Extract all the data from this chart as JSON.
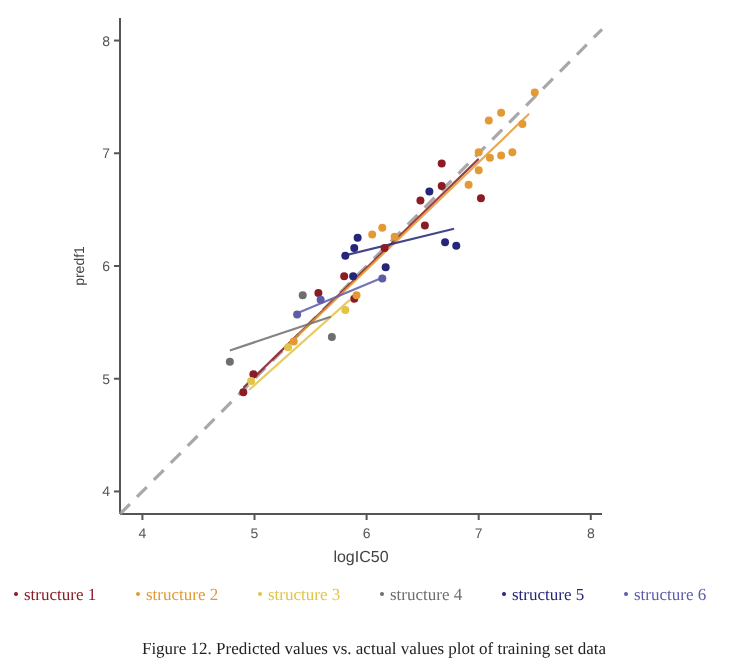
{
  "chart_data": {
    "type": "scatter",
    "xlabel": "logIC50",
    "ylabel": "predf1",
    "xlim": [
      3.8,
      8.1
    ],
    "ylim": [
      3.8,
      8.2
    ],
    "xticks": [
      4,
      5,
      6,
      7,
      8
    ],
    "yticks": [
      4,
      5,
      6,
      7,
      8
    ],
    "grid": false,
    "legend": "bottom",
    "marker": "circle",
    "annotations": [
      "Figure 12. Predicted values vs. actual values plot of training set data"
    ],
    "series": [
      {
        "name": "structure 1",
        "color": "#8b1c24",
        "x": [
          6.67,
          6.67,
          6.48,
          6.52,
          7.02,
          6.16,
          5.57,
          5.8,
          5.89,
          4.99,
          4.9
        ],
        "values": [
          6.91,
          6.71,
          6.58,
          6.36,
          6.6,
          6.16,
          5.76,
          5.91,
          5.71,
          5.04,
          4.88
        ]
      },
      {
        "name": "structure 2",
        "color": "#e39a35",
        "x": [
          7.5,
          7.2,
          7.09,
          7.39,
          7.3,
          7.2,
          7.1,
          7.0,
          7.0,
          6.91,
          6.25,
          6.14,
          6.05,
          5.91,
          5.35
        ],
        "values": [
          7.54,
          7.36,
          7.29,
          7.26,
          7.01,
          6.98,
          6.96,
          7.01,
          6.85,
          6.72,
          6.26,
          6.34,
          6.28,
          5.74,
          5.33
        ]
      },
      {
        "name": "structure 3",
        "color": "#e2c447",
        "x": [
          5.81,
          4.97,
          5.3
        ],
        "values": [
          5.61,
          4.98,
          5.28
        ]
      },
      {
        "name": "structure 4",
        "color": "#6e6e6e",
        "x": [
          5.43,
          5.69,
          4.78
        ],
        "values": [
          5.74,
          5.37,
          5.15
        ]
      },
      {
        "name": "structure 5",
        "color": "#25257a",
        "x": [
          6.56,
          6.7,
          6.8,
          5.92,
          5.89,
          5.81,
          6.17,
          5.88
        ],
        "values": [
          6.66,
          6.21,
          6.18,
          6.25,
          6.16,
          6.09,
          5.99,
          5.91
        ]
      },
      {
        "name": "structure 6",
        "color": "#5c5ca8",
        "x": [
          6.14,
          5.38,
          5.59
        ],
        "values": [
          5.89,
          5.57,
          5.7
        ]
      },
      {
        "type": "line",
        "color": "#999999",
        "line_style": "dashed",
        "marker": "none",
        "x": [
          3.8,
          8.1
        ],
        "values": [
          3.8,
          8.1
        ]
      },
      {
        "type": "line",
        "color": "#8b1c24",
        "marker": "none",
        "x": [
          4.9,
          7.0
        ],
        "values": [
          4.92,
          6.95
        ]
      },
      {
        "type": "line",
        "color": "#e39a35",
        "marker": "none",
        "x": [
          5.3,
          7.45
        ],
        "values": [
          5.3,
          7.35
        ]
      },
      {
        "type": "line",
        "color": "#e2c447",
        "marker": "none",
        "x": [
          4.95,
          5.85
        ],
        "values": [
          4.9,
          5.7
        ]
      },
      {
        "type": "line",
        "color": "#6e6e6e",
        "marker": "none",
        "x": [
          4.78,
          5.68
        ],
        "values": [
          5.25,
          5.55
        ]
      },
      {
        "type": "line",
        "color": "#25257a",
        "marker": "none",
        "x": [
          5.79,
          6.78
        ],
        "values": [
          6.09,
          6.33
        ]
      },
      {
        "type": "line",
        "color": "#5c5ca8",
        "marker": "none",
        "x": [
          5.38,
          6.15
        ],
        "values": [
          5.58,
          5.9
        ]
      }
    ]
  }
}
